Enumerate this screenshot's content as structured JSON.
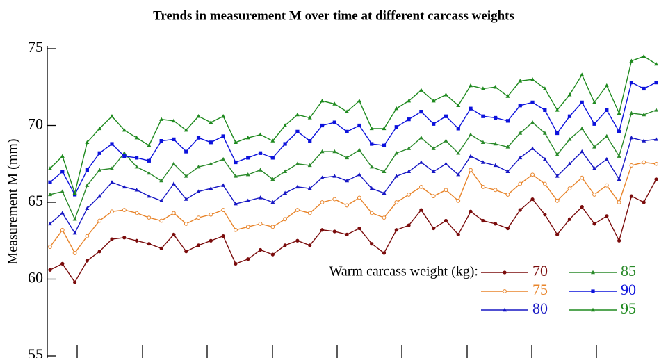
{
  "chart_data": {
    "type": "line",
    "title": "Trends in measurement M over time at different carcass weights",
    "y_label": "Measurement M (mm)",
    "legend_title": "Warm carcass weight (kg):",
    "ylim": [
      55,
      75
    ],
    "yticks": [
      55,
      60,
      65,
      70,
      75
    ],
    "series": [
      {
        "name": "70",
        "color": "#7a0b0b",
        "marker": "circle",
        "values": [
          60.6,
          61.0,
          59.8,
          61.2,
          61.8,
          62.6,
          62.7,
          62.5,
          62.3,
          62.0,
          62.9,
          61.8,
          62.2,
          62.5,
          62.8,
          61.0,
          61.3,
          61.9,
          61.6,
          62.2,
          62.5,
          62.2,
          63.2,
          63.1,
          62.9,
          63.3,
          62.3,
          61.7,
          63.2,
          63.5,
          64.5,
          63.3,
          63.8,
          62.9,
          64.4,
          63.8,
          63.6,
          63.3,
          64.5,
          65.2,
          64.2,
          62.9,
          63.9,
          64.7,
          63.6,
          64.1,
          62.5,
          65.4,
          65.0,
          66.5
        ]
      },
      {
        "name": "75",
        "color": "#e8842a",
        "marker": "open-circle",
        "values": [
          62.1,
          63.2,
          61.7,
          62.8,
          63.8,
          64.4,
          64.5,
          64.3,
          64.0,
          63.8,
          64.3,
          63.6,
          64.0,
          64.2,
          64.5,
          63.2,
          63.4,
          63.6,
          63.4,
          63.9,
          64.5,
          64.3,
          65.0,
          65.2,
          64.8,
          65.3,
          64.3,
          64.0,
          65.0,
          65.5,
          66.0,
          65.4,
          65.8,
          65.1,
          67.1,
          66.0,
          65.8,
          65.5,
          66.2,
          66.8,
          66.2,
          65.1,
          65.9,
          66.6,
          65.5,
          66.1,
          65.0,
          67.4,
          67.6,
          67.5
        ]
      },
      {
        "name": "80",
        "color": "#1717c4",
        "marker": "triangle",
        "values": [
          63.6,
          64.3,
          63.0,
          64.6,
          65.4,
          66.3,
          66.0,
          65.8,
          65.4,
          65.1,
          66.2,
          65.2,
          65.7,
          65.9,
          66.1,
          64.9,
          65.1,
          65.3,
          65.0,
          65.6,
          66.0,
          65.9,
          66.6,
          66.7,
          66.4,
          66.8,
          65.9,
          65.6,
          66.7,
          67.0,
          67.6,
          67.0,
          67.5,
          66.8,
          68.0,
          67.6,
          67.4,
          67.0,
          67.9,
          68.5,
          67.8,
          66.7,
          67.5,
          68.3,
          67.2,
          67.8,
          66.5,
          69.2,
          69.0,
          69.1
        ]
      },
      {
        "name": "85",
        "color": "#2a8a2a",
        "marker": "triangle",
        "values": [
          65.5,
          65.7,
          63.9,
          66.1,
          67.1,
          67.2,
          68.2,
          67.3,
          66.9,
          66.4,
          67.5,
          66.7,
          67.3,
          67.5,
          67.8,
          66.7,
          66.8,
          67.1,
          66.5,
          67.0,
          67.5,
          67.4,
          68.3,
          68.3,
          67.9,
          68.4,
          67.3,
          67.0,
          68.2,
          68.5,
          69.2,
          68.5,
          69.0,
          68.2,
          69.4,
          68.9,
          68.8,
          68.6,
          69.5,
          70.2,
          69.5,
          68.1,
          69.1,
          69.8,
          68.6,
          69.3,
          68.0,
          70.8,
          70.7,
          71.0
        ]
      },
      {
        "name": "90",
        "color": "#0c12dc",
        "marker": "square",
        "values": [
          66.3,
          67.0,
          65.5,
          67.1,
          68.2,
          68.8,
          68.0,
          67.9,
          67.7,
          69.0,
          69.1,
          68.3,
          69.2,
          68.9,
          69.3,
          67.6,
          67.9,
          68.2,
          67.9,
          68.8,
          69.6,
          69.0,
          70.0,
          70.2,
          69.6,
          70.0,
          68.8,
          68.7,
          69.9,
          70.4,
          70.9,
          70.1,
          70.6,
          69.8,
          71.1,
          70.6,
          70.5,
          70.3,
          71.3,
          71.5,
          71.0,
          69.5,
          70.6,
          71.5,
          70.1,
          71.0,
          69.6,
          72.8,
          72.4,
          72.8
        ]
      },
      {
        "name": "95",
        "color": "#1e8a1e",
        "marker": "triangle",
        "values": [
          67.2,
          68.0,
          65.6,
          68.9,
          69.8,
          70.6,
          69.7,
          69.2,
          68.7,
          70.4,
          70.3,
          69.7,
          70.6,
          70.2,
          70.6,
          68.9,
          69.2,
          69.4,
          69.0,
          70.0,
          70.7,
          70.5,
          71.6,
          71.4,
          70.9,
          71.6,
          69.8,
          69.8,
          71.1,
          71.6,
          72.3,
          71.6,
          72.0,
          71.3,
          72.6,
          72.4,
          72.5,
          71.9,
          72.9,
          73.0,
          72.4,
          71.0,
          72.0,
          73.3,
          71.5,
          72.6,
          70.8,
          74.2,
          74.5,
          74.0
        ]
      }
    ]
  }
}
